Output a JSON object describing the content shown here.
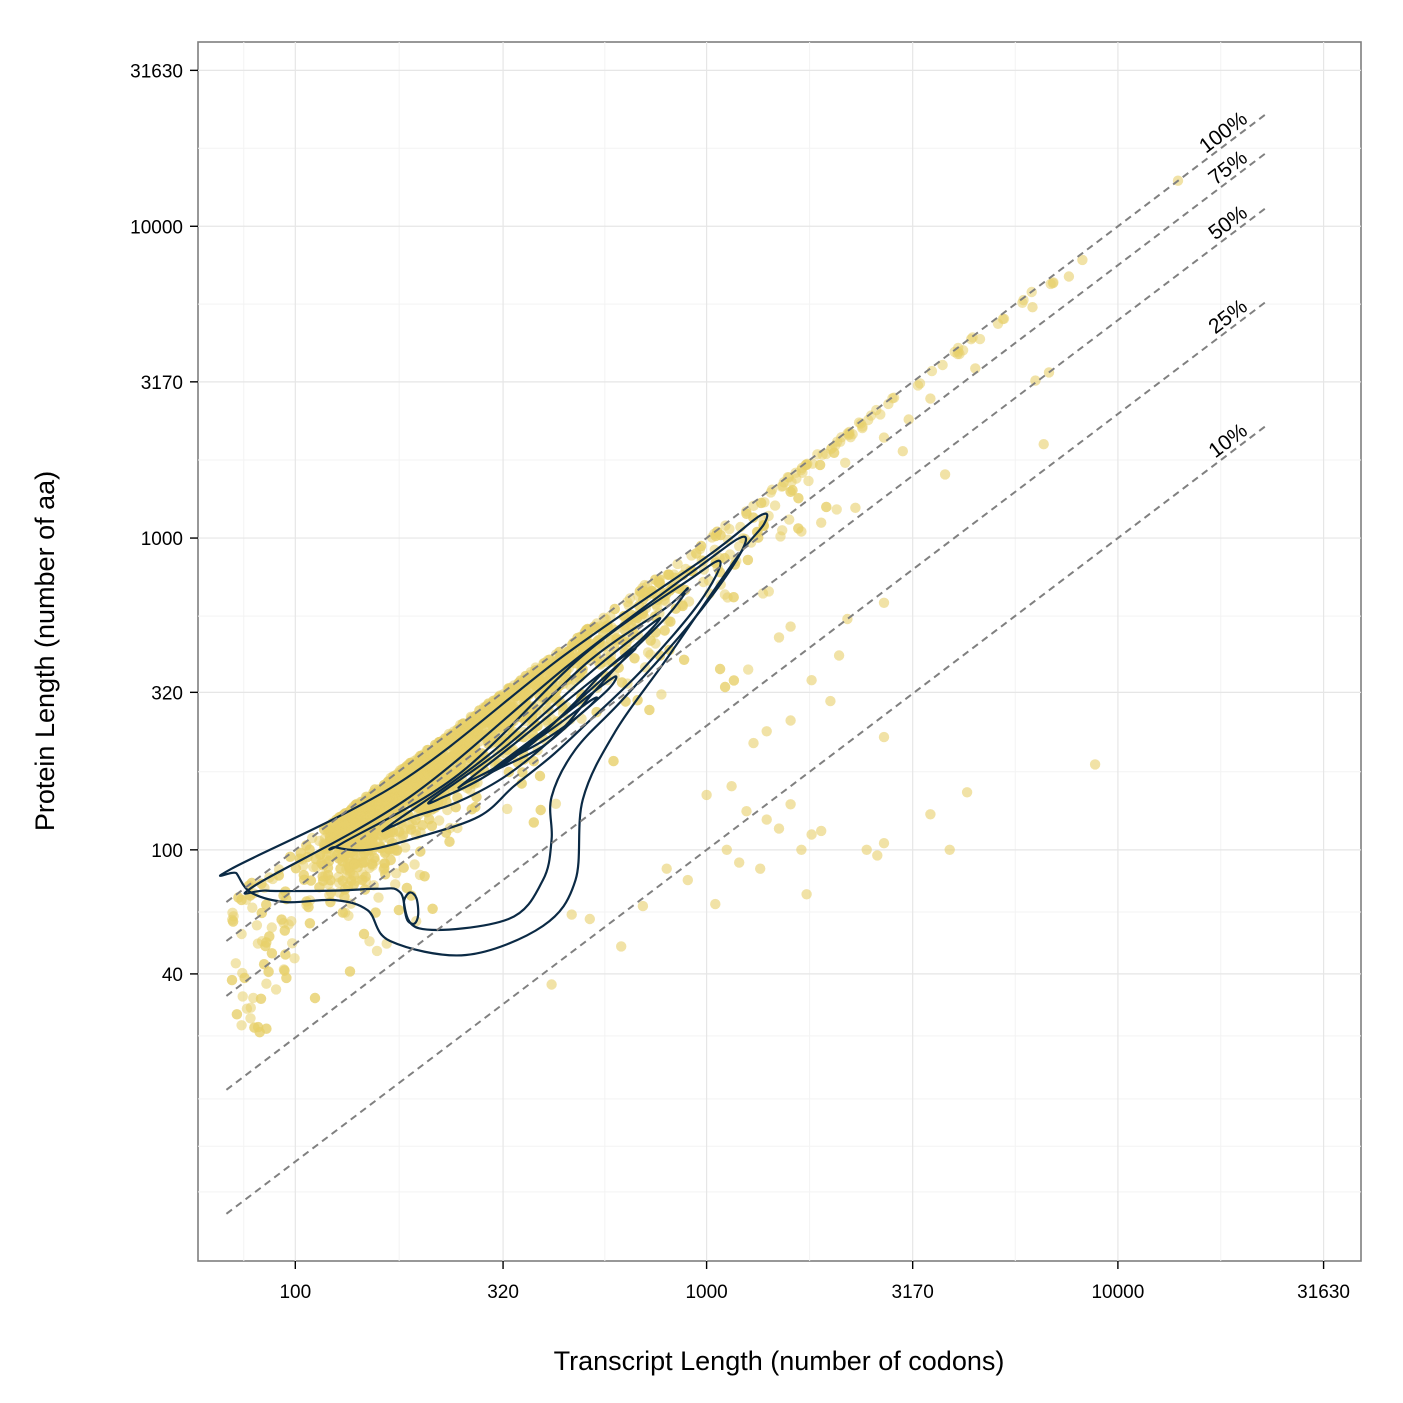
{
  "chart_data": {
    "type": "scatter",
    "title": "",
    "xlabel": "Transcript Length (number of codons)",
    "ylabel": "Protein Length (number of aa)",
    "x_scale": "log10",
    "y_scale": "log10",
    "xlim": [
      58,
      39000
    ],
    "ylim": [
      4.8,
      39000
    ],
    "x_ticks": [
      {
        "value": 100,
        "label": "100"
      },
      {
        "value": 320,
        "label": "320"
      },
      {
        "value": 1000,
        "label": "1000"
      },
      {
        "value": 3170,
        "label": "3170"
      },
      {
        "value": 10000,
        "label": "10000"
      },
      {
        "value": 31630,
        "label": "31630"
      }
    ],
    "y_ticks": [
      {
        "value": 40,
        "label": "40"
      },
      {
        "value": 100,
        "label": "100"
      },
      {
        "value": 320,
        "label": "320"
      },
      {
        "value": 1000,
        "label": "1000"
      },
      {
        "value": 3170,
        "label": "3170"
      },
      {
        "value": 10000,
        "label": "10000"
      },
      {
        "value": 31630,
        "label": "31630"
      }
    ],
    "grid": true,
    "point_color": "#e8cf6a",
    "contour_color": "#0b2a45",
    "reference_color": "#808080",
    "reference_lines": [
      {
        "ratio": 1.0,
        "label": "100%"
      },
      {
        "ratio": 0.75,
        "label": "75%"
      },
      {
        "ratio": 0.5,
        "label": "50%"
      },
      {
        "ratio": 0.25,
        "label": "25%"
      },
      {
        "ratio": 0.1,
        "label": "10%"
      }
    ],
    "reference_x_range": [
      68,
      23000
    ],
    "outlier_points": [
      [
        14000,
        14000
      ],
      [
        8200,
        7800
      ],
      [
        7600,
        6900
      ],
      [
        6200,
        5500
      ],
      [
        6800,
        3400
      ],
      [
        6300,
        3200
      ],
      [
        4500,
        3500
      ],
      [
        3500,
        2800
      ],
      [
        3100,
        2400
      ],
      [
        2700,
        2100
      ],
      [
        6600,
        2000
      ],
      [
        3000,
        1900
      ],
      [
        3800,
        1600
      ],
      [
        2300,
        1250
      ],
      [
        1900,
        1120
      ],
      [
        1700,
        1050
      ],
      [
        2700,
        620
      ],
      [
        2200,
        550
      ],
      [
        1600,
        520
      ],
      [
        1500,
        480
      ],
      [
        2100,
        420
      ],
      [
        1800,
        350
      ],
      [
        2000,
        300
      ],
      [
        1600,
        260
      ],
      [
        2700,
        230
      ],
      [
        1400,
        240
      ],
      [
        1300,
        220
      ],
      [
        8800,
        188
      ],
      [
        4300,
        153
      ],
      [
        3500,
        130
      ],
      [
        2700,
        105
      ],
      [
        2450,
        100
      ],
      [
        2600,
        96
      ],
      [
        3900,
        100
      ],
      [
        1900,
        115
      ],
      [
        1800,
        112
      ],
      [
        1500,
        117
      ],
      [
        1600,
        140
      ],
      [
        1400,
        125
      ],
      [
        1700,
        100
      ],
      [
        1200,
        91
      ],
      [
        1350,
        87
      ],
      [
        1120,
        100
      ],
      [
        1750,
        72
      ],
      [
        1050,
        67
      ],
      [
        900,
        80
      ],
      [
        800,
        87
      ],
      [
        620,
        49
      ],
      [
        420,
        37
      ],
      [
        520,
        60
      ],
      [
        470,
        62
      ],
      [
        700,
        66
      ],
      [
        1250,
        133
      ],
      [
        1150,
        160
      ],
      [
        1000,
        150
      ]
    ],
    "core_point_count": 2600,
    "contours": [
      [
        [
          70,
          87
        ],
        [
          180,
          165
        ],
        [
          450,
          420
        ],
        [
          1000,
          870
        ],
        [
          1350,
          1180
        ],
        [
          1380,
          1110
        ],
        [
          1180,
          860
        ],
        [
          800,
          410
        ],
        [
          600,
          240
        ],
        [
          500,
          145
        ],
        [
          480,
          80
        ],
        [
          400,
          57
        ],
        [
          260,
          46
        ],
        [
          170,
          51
        ],
        [
          150,
          64
        ],
        [
          125,
          69
        ],
        [
          95,
          68
        ],
        [
          78,
          73
        ],
        [
          72,
          84
        ]
      ],
      [
        [
          80,
          77
        ],
        [
          190,
          148
        ],
        [
          460,
          390
        ],
        [
          960,
          810
        ],
        [
          1230,
          1010
        ],
        [
          1170,
          830
        ],
        [
          900,
          520
        ],
        [
          620,
          300
        ],
        [
          480,
          210
        ],
        [
          420,
          148
        ],
        [
          420,
          108
        ],
        [
          400,
          80
        ],
        [
          330,
          60
        ],
        [
          200,
          56
        ],
        [
          180,
          73
        ],
        [
          160,
          75
        ],
        [
          125,
          74
        ],
        [
          85,
          74
        ]
      ],
      [
        [
          130,
          105
        ],
        [
          250,
          175
        ],
        [
          500,
          420
        ],
        [
          900,
          730
        ],
        [
          1080,
          840
        ],
        [
          960,
          620
        ],
        [
          700,
          380
        ],
        [
          520,
          260
        ],
        [
          420,
          200
        ],
        [
          340,
          160
        ],
        [
          280,
          128
        ],
        [
          200,
          110
        ],
        [
          150,
          100
        ],
        [
          125,
          102
        ]
      ],
      [
        [
          170,
          120
        ],
        [
          300,
          205
        ],
        [
          520,
          405
        ],
        [
          800,
          600
        ],
        [
          900,
          690
        ],
        [
          800,
          560
        ],
        [
          620,
          400
        ],
        [
          520,
          310
        ],
        [
          440,
          240
        ],
        [
          330,
          175
        ],
        [
          250,
          143
        ],
        [
          195,
          128
        ],
        [
          172,
          119
        ]
      ],
      [
        [
          215,
          145
        ],
        [
          330,
          218
        ],
        [
          540,
          385
        ],
        [
          720,
          520
        ],
        [
          770,
          550
        ],
        [
          690,
          470
        ],
        [
          560,
          370
        ],
        [
          470,
          290
        ],
        [
          370,
          215
        ],
        [
          285,
          170
        ],
        [
          230,
          148
        ]
      ],
      [
        [
          255,
          162
        ],
        [
          350,
          225
        ],
        [
          520,
          345
        ],
        [
          640,
          425
        ],
        [
          670,
          440
        ],
        [
          600,
          385
        ],
        [
          500,
          310
        ],
        [
          410,
          245
        ],
        [
          320,
          190
        ],
        [
          262,
          165
        ]
      ],
      [
        [
          300,
          180
        ],
        [
          400,
          240
        ],
        [
          530,
          320
        ],
        [
          600,
          360
        ],
        [
          580,
          330
        ],
        [
          490,
          270
        ],
        [
          400,
          215
        ],
        [
          320,
          185
        ]
      ],
      [
        [
          350,
          205
        ],
        [
          440,
          255
        ],
        [
          520,
          300
        ],
        [
          540,
          305
        ],
        [
          490,
          270
        ],
        [
          410,
          228
        ],
        [
          360,
          207
        ]
      ],
      [
        [
          184,
          69
        ],
        [
          190,
          73
        ],
        [
          197,
          70
        ],
        [
          199,
          62
        ],
        [
          195,
          58
        ],
        [
          188,
          59
        ],
        [
          185,
          63
        ]
      ]
    ]
  }
}
